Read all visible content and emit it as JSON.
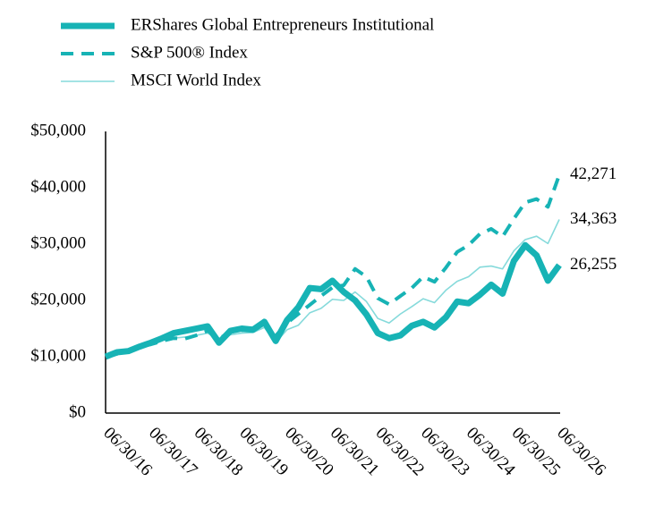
{
  "chart_data": {
    "type": "line",
    "categories": [
      "06/30/16",
      null,
      null,
      null,
      "06/30/17",
      null,
      null,
      null,
      "06/30/18",
      null,
      null,
      null,
      "06/30/19",
      null,
      null,
      null,
      "06/30/20",
      null,
      null,
      null,
      "06/30/21",
      null,
      null,
      null,
      "06/30/22",
      null,
      null,
      null,
      "06/30/23",
      null,
      null,
      null,
      "06/30/24",
      null,
      null,
      null,
      "06/30/25",
      null,
      null,
      null,
      "06/30/26"
    ],
    "ylim": [
      0,
      50000
    ],
    "yticks": [
      {
        "value": 0,
        "label": "$0"
      },
      {
        "value": 10000,
        "label": "$10,000"
      },
      {
        "value": 20000,
        "label": "$20,000"
      },
      {
        "value": 30000,
        "label": "$30,000"
      },
      {
        "value": 40000,
        "label": "$40,000"
      },
      {
        "value": 50000,
        "label": "$50,000"
      }
    ],
    "grid": false,
    "legend": "top",
    "series": [
      {
        "name": "ERShares Global Entrepreneurs Institutional",
        "color": "#17b3b5",
        "line_style": "thick",
        "values": [
          10000,
          10800,
          11000,
          11800,
          12500,
          13300,
          14200,
          14600,
          15000,
          15400,
          12500,
          14600,
          15000,
          14800,
          16200,
          12800,
          16500,
          18800,
          22200,
          22000,
          23500,
          21500,
          20000,
          17500,
          14200,
          13300,
          13800,
          15500,
          16200,
          15200,
          17000,
          19800,
          19500,
          21000,
          22800,
          21200,
          27000,
          29800,
          28000,
          23500,
          26255
        ],
        "value_labels": [
          null,
          null,
          null,
          null,
          null,
          null,
          null,
          null,
          null,
          null,
          null,
          null,
          null,
          null,
          null,
          null,
          null,
          null,
          null,
          null,
          null,
          null,
          null,
          null,
          null,
          null,
          null,
          null,
          null,
          null,
          null,
          null,
          null,
          null,
          null,
          null,
          null,
          null,
          null,
          null,
          "26,255"
        ]
      },
      {
        "name": "S&P 500® Index",
        "color": "#17b3b5",
        "line_style": "dashed",
        "values": [
          10000,
          10500,
          11000,
          11800,
          12200,
          12800,
          13300,
          13200,
          13800,
          14600,
          13200,
          14400,
          14700,
          14800,
          15800,
          13700,
          16000,
          17600,
          19200,
          20800,
          22300,
          22700,
          25600,
          24200,
          20400,
          19300,
          20800,
          22200,
          24200,
          23300,
          25800,
          28600,
          29800,
          31800,
          32700,
          31300,
          34500,
          37400,
          38000,
          36600,
          42271
        ],
        "value_labels": [
          null,
          null,
          null,
          null,
          null,
          null,
          null,
          null,
          null,
          null,
          null,
          null,
          null,
          null,
          null,
          null,
          null,
          null,
          null,
          null,
          null,
          null,
          null,
          null,
          null,
          null,
          null,
          null,
          null,
          null,
          null,
          null,
          null,
          null,
          null,
          null,
          null,
          null,
          null,
          null,
          "42,271"
        ]
      },
      {
        "name": "MSCI World Index",
        "color": "#86dadb",
        "line_style": "thin",
        "values": [
          10000,
          10400,
          10800,
          11600,
          12200,
          12900,
          13300,
          13500,
          13800,
          14200,
          12900,
          13900,
          14200,
          14300,
          15200,
          12500,
          14800,
          15600,
          17800,
          18600,
          20200,
          20000,
          21500,
          19800,
          16800,
          16000,
          17600,
          18900,
          20300,
          19600,
          21800,
          23400,
          24200,
          25900,
          26100,
          25600,
          28800,
          30800,
          31400,
          30100,
          34363
        ],
        "value_labels": [
          null,
          null,
          null,
          null,
          null,
          null,
          null,
          null,
          null,
          null,
          null,
          null,
          null,
          null,
          null,
          null,
          null,
          null,
          null,
          null,
          null,
          null,
          null,
          null,
          null,
          null,
          null,
          null,
          null,
          null,
          null,
          null,
          null,
          null,
          null,
          null,
          null,
          null,
          null,
          null,
          "34,363"
        ]
      }
    ]
  }
}
